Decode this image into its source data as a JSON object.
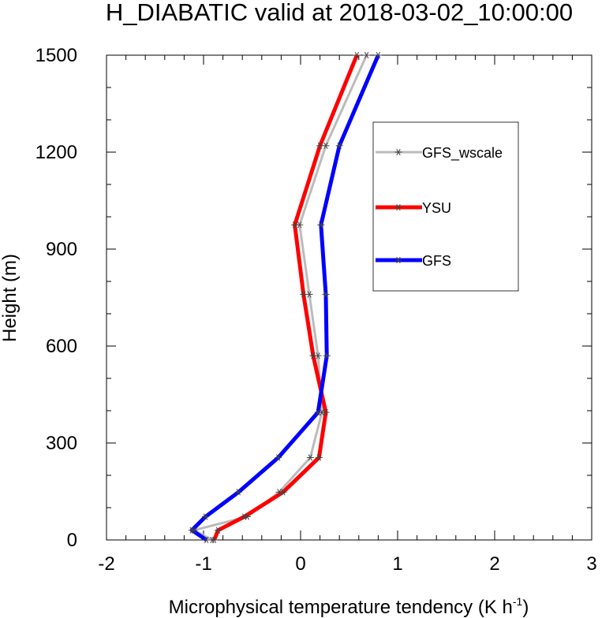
{
  "chart_data": {
    "type": "line",
    "title": "H_DIABATIC valid at 2018-03-02_10:00:00",
    "xlabel": "Microphysical temperature tendency (K h",
    "xlabel_sup": "-1",
    "xlabel_close": ")",
    "ylabel": "Height (m)",
    "xlim": [
      -2,
      3
    ],
    "ylim": [
      0,
      1500
    ],
    "x_ticks": [
      -2,
      -1,
      0,
      1,
      2,
      3
    ],
    "x_tick_labels": [
      "-2",
      "-1",
      "0",
      "1",
      "2",
      "3"
    ],
    "y_ticks": [
      0,
      300,
      600,
      900,
      1200,
      1500
    ],
    "y_tick_labels": [
      "0",
      "300",
      "600",
      "900",
      "1200",
      "1500"
    ],
    "grid": false,
    "legend_position": "upper-right",
    "series": [
      {
        "name": "GFS_wscale",
        "color": "#bbbbbb",
        "points": [
          {
            "x": -0.91,
            "y": 0
          },
          {
            "x": -1.1,
            "y": 30
          },
          {
            "x": -0.55,
            "y": 72
          },
          {
            "x": -0.22,
            "y": 148
          },
          {
            "x": 0.1,
            "y": 255
          },
          {
            "x": 0.22,
            "y": 395
          },
          {
            "x": 0.18,
            "y": 570
          },
          {
            "x": 0.09,
            "y": 760
          },
          {
            "x": -0.01,
            "y": 975
          },
          {
            "x": 0.26,
            "y": 1220
          },
          {
            "x": 0.68,
            "y": 1500
          }
        ]
      },
      {
        "name": "YSU",
        "color": "#ff0000",
        "points": [
          {
            "x": -0.89,
            "y": 0
          },
          {
            "x": -0.85,
            "y": 30
          },
          {
            "x": -0.58,
            "y": 72
          },
          {
            "x": -0.18,
            "y": 148
          },
          {
            "x": 0.19,
            "y": 255
          },
          {
            "x": 0.26,
            "y": 395
          },
          {
            "x": 0.13,
            "y": 570
          },
          {
            "x": 0.03,
            "y": 760
          },
          {
            "x": -0.06,
            "y": 975
          },
          {
            "x": 0.2,
            "y": 1220
          },
          {
            "x": 0.58,
            "y": 1500
          }
        ]
      },
      {
        "name": "GFS",
        "color": "#0000ff",
        "points": [
          {
            "x": -0.97,
            "y": 0
          },
          {
            "x": -1.12,
            "y": 30
          },
          {
            "x": -0.98,
            "y": 72
          },
          {
            "x": -0.64,
            "y": 148
          },
          {
            "x": -0.23,
            "y": 255
          },
          {
            "x": 0.18,
            "y": 395
          },
          {
            "x": 0.27,
            "y": 570
          },
          {
            "x": 0.26,
            "y": 760
          },
          {
            "x": 0.21,
            "y": 975
          },
          {
            "x": 0.4,
            "y": 1220
          },
          {
            "x": 0.8,
            "y": 1500
          }
        ]
      }
    ]
  }
}
